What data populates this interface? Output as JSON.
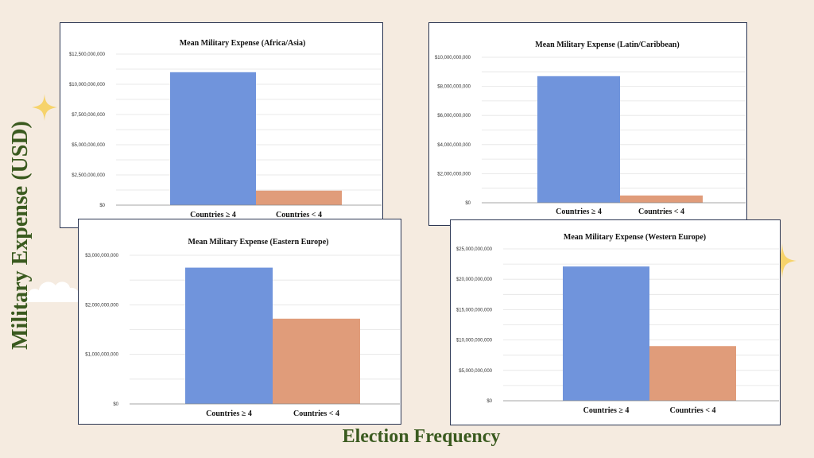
{
  "slide": {
    "y_title": "Military Expense (USD)",
    "x_title": "Election Frequency"
  },
  "colors": {
    "background": "#f5ebe0",
    "title_text": "#3a5a1f",
    "bar_a": "#7094dc",
    "bar_b": "#e09c7a",
    "star": "#f6d36b",
    "cloud": "#ffffff"
  },
  "icons": [
    "sparkle-icon",
    "sparkle-icon",
    "cloud-icon"
  ],
  "chart_data": [
    {
      "id": "africa-asia",
      "type": "bar",
      "title": "Mean Military Expense (Africa/Asia)",
      "categories": [
        "Countries ≥ 4",
        "Countries < 4"
      ],
      "values": [
        11000000000,
        1200000000
      ],
      "ylim": [
        0,
        12500000000
      ],
      "yticks": [
        0,
        2500000000,
        5000000000,
        7500000000,
        10000000000,
        12500000000
      ],
      "ytick_labels": [
        "$0",
        "$2,500,000,000",
        "$5,000,000,000",
        "$7,500,000,000",
        "$10,000,000,000",
        "$12,500,000,000"
      ],
      "grid": true
    },
    {
      "id": "latin-caribbean",
      "type": "bar",
      "title": "Mean Military Expense (Latin/Caribbean)",
      "categories": [
        "Countries ≥ 4",
        "Countries < 4"
      ],
      "values": [
        8700000000,
        500000000
      ],
      "ylim": [
        0,
        10000000000
      ],
      "yticks": [
        0,
        2000000000,
        4000000000,
        6000000000,
        8000000000,
        10000000000
      ],
      "ytick_labels": [
        "$0",
        "$2,000,000,000",
        "$4,000,000,000",
        "$6,000,000,000",
        "$8,000,000,000",
        "$10,000,000,000"
      ],
      "grid": true
    },
    {
      "id": "eastern-europe",
      "type": "bar",
      "title": "Mean Military Expense (Eastern Europe)",
      "categories": [
        "Countries ≥ 4",
        "Countries < 4"
      ],
      "values": [
        2750000000,
        1720000000
      ],
      "ylim": [
        0,
        3000000000
      ],
      "yticks": [
        0,
        1000000000,
        2000000000,
        3000000000
      ],
      "ytick_labels": [
        "$0",
        "$1,000,000,000",
        "$2,000,000,000",
        "$3,000,000,000"
      ],
      "grid": true
    },
    {
      "id": "western-europe",
      "type": "bar",
      "title": "Mean Military Expense (Western Europe)",
      "categories": [
        "Countries ≥ 4",
        "Countries < 4"
      ],
      "values": [
        22100000000,
        9000000000
      ],
      "ylim": [
        0,
        25000000000
      ],
      "yticks": [
        0,
        5000000000,
        10000000000,
        15000000000,
        20000000000,
        25000000000
      ],
      "ytick_labels": [
        "$0",
        "$5,000,000,000",
        "$10,000,000,000",
        "$15,000,000,000",
        "$20,000,000,000",
        "$25,000,000,000"
      ],
      "grid": true
    }
  ]
}
